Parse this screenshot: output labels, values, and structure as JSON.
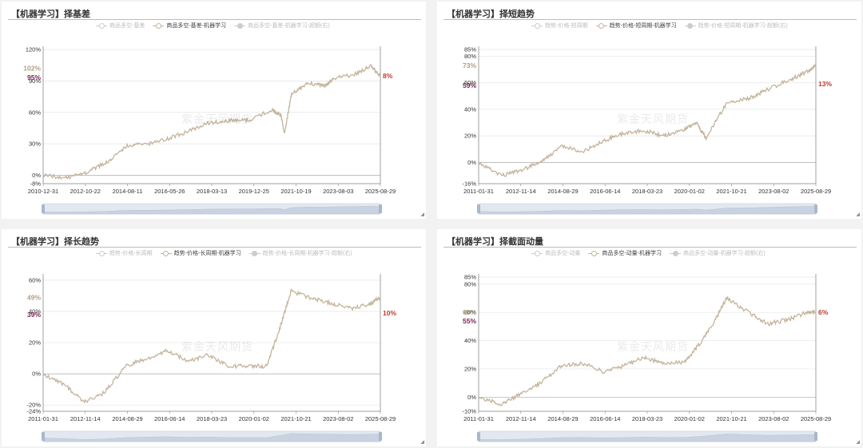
{
  "watermark": "紫金天风期货",
  "colors": {
    "series": "#c4b49c",
    "left_label": "#b09e84",
    "mid_label": "#7a2256",
    "right_label": "#c0392b",
    "grid": "#e4e4e4"
  },
  "panels": [
    {
      "title": "【机器学习】择基差",
      "legend": [
        "商品多空-基差",
        "商品多空-基差-机器学习",
        "商品多空-基差-机器学习-超额(右)"
      ],
      "chart_data": {
        "type": "line",
        "title": "【机器学习】择基差",
        "x_tick_labels": [
          "2010-12-31",
          "2012-10-22",
          "2014-08-11",
          "2016-05-26",
          "2018-03-13",
          "2019-12-25",
          "2021-10-19",
          "2023-08-03",
          "2025-08-29"
        ],
        "y_tick_labels": [
          "-8%",
          "0%",
          "30%",
          "60%",
          "90%",
          "120%"
        ],
        "ylim": [
          -8,
          120
        ],
        "x": [
          "2010-12-31",
          "2011-12-31",
          "2012-10-22",
          "2013-09-30",
          "2014-08-11",
          "2015-06-30",
          "2016-05-26",
          "2017-04-30",
          "2018-03-13",
          "2019-01-31",
          "2019-12-25",
          "2020-11-30",
          "2021-04-30",
          "2021-06-30",
          "2021-10-19",
          "2022-06-30",
          "2023-03-31",
          "2023-08-03",
          "2024-06-30",
          "2025-03-31",
          "2025-08-29"
        ],
        "series": [
          {
            "values": [
              0,
              -2,
              2,
              12,
              28,
              30,
              35,
              42,
              50,
              52,
              53,
              62,
              58,
              40,
              78,
              88,
              85,
              92,
              96,
              104,
              95
            ]
          }
        ],
        "value_labels": {
          "left_top": "102%",
          "left_mid": "95%",
          "right": "8%"
        },
        "value_label_levels": {
          "left_top": 102,
          "left_mid": 95,
          "right": 95
        }
      }
    },
    {
      "title": "【机器学习】择短趋势",
      "legend": [
        "趋势-价格-短周期",
        "趋势-价格-短周期-机器学习",
        "趋势-价格-短周期-机器学习-超额(右)"
      ],
      "chart_data": {
        "type": "line",
        "title": "【机器学习】择短趋势",
        "x_tick_labels": [
          "2011-01-31",
          "2012-11-14",
          "2014-08-29",
          "2016-06-14",
          "2018-03-23",
          "2020-01-02",
          "2021-10-21",
          "2023-08-02",
          "2025-08-29"
        ],
        "y_tick_labels": [
          "-16%",
          "0%",
          "20%",
          "40%",
          "60%",
          "80%",
          "85%"
        ],
        "ylim": [
          -16,
          85
        ],
        "x": [
          "2011-01-31",
          "2012-01-31",
          "2012-11-14",
          "2013-09-30",
          "2014-08-29",
          "2015-07-31",
          "2016-06-14",
          "2017-04-30",
          "2018-03-23",
          "2019-01-31",
          "2020-01-02",
          "2020-06-30",
          "2020-11-30",
          "2021-10-21",
          "2022-09-30",
          "2023-08-02",
          "2024-06-30",
          "2025-03-31",
          "2025-08-29"
        ],
        "series": [
          {
            "values": [
              0,
              -10,
              -6,
              0,
              12,
              8,
              16,
              22,
              24,
              20,
              25,
              30,
              18,
              45,
              48,
              55,
              62,
              68,
              73
            ]
          }
        ],
        "value_labels": {
          "left_top": "73%",
          "left_mid": "59%",
          "right": "13%"
        },
        "value_label_levels": {
          "left_top": 73,
          "left_mid": 59,
          "right": 59
        }
      }
    },
    {
      "title": "【机器学习】择长趋势",
      "legend": [
        "趋势-价格-长周期",
        "趋势-价格-长周期-机器学习",
        "趋势-价格-长周期-机器学习-超额(右)"
      ],
      "chart_data": {
        "type": "line",
        "title": "【机器学习】择长趋势",
        "x_tick_labels": [
          "2011-01-31",
          "2012-11-14",
          "2014-08-29",
          "2016-06-14",
          "2018-03-23",
          "2020-01-02",
          "2021-10-21",
          "2023-08-02",
          "2025-08-29"
        ],
        "y_tick_labels": [
          "-24%",
          "-20%",
          "0%",
          "20%",
          "40%",
          "60%"
        ],
        "ylim": [
          -24,
          62
        ],
        "x": [
          "2011-01-31",
          "2012-01-31",
          "2012-11-14",
          "2013-09-30",
          "2014-08-29",
          "2015-07-31",
          "2016-06-14",
          "2017-04-30",
          "2018-03-23",
          "2019-01-31",
          "2020-01-02",
          "2020-09-30",
          "2021-04-30",
          "2021-10-21",
          "2022-09-30",
          "2023-08-02",
          "2024-06-30",
          "2025-03-31",
          "2025-08-29"
        ],
        "series": [
          {
            "values": [
              0,
              -8,
              -18,
              -12,
              5,
              10,
              15,
              8,
              12,
              5,
              5,
              5,
              30,
              53,
              48,
              45,
              42,
              45,
              49
            ]
          }
        ],
        "value_labels": {
          "left_top": "49%",
          "left_mid": "39%",
          "right": "10%"
        },
        "value_label_levels": {
          "left_top": 49,
          "left_mid": 39,
          "right": 39
        }
      }
    },
    {
      "title": "【机器学习】择截面动量",
      "legend": [
        "商品多空-动量",
        "商品多空-动量-机器学习",
        "商品多空-动量-机器学习-超额(右)"
      ],
      "chart_data": {
        "type": "line",
        "title": "【机器学习】择截面动量",
        "x_tick_labels": [
          "2011-01-31",
          "2012-11-14",
          "2014-08-29",
          "2016-06-14",
          "2018-03-23",
          "2020-01-02",
          "2021-10-21",
          "2023-08-02",
          "2025-08-29"
        ],
        "y_tick_labels": [
          "-10%",
          "0%",
          "20%",
          "40%",
          "60%",
          "80%",
          "85%"
        ],
        "ylim": [
          -10,
          85
        ],
        "x": [
          "2011-01-31",
          "2012-01-31",
          "2012-11-14",
          "2013-09-30",
          "2014-08-29",
          "2015-07-31",
          "2016-06-14",
          "2017-04-30",
          "2018-03-23",
          "2019-01-31",
          "2020-01-02",
          "2020-09-30",
          "2021-04-30",
          "2021-10-21",
          "2022-09-30",
          "2023-08-02",
          "2024-06-30",
          "2025-03-31",
          "2025-08-29"
        ],
        "series": [
          {
            "values": [
              0,
              -5,
              2,
              10,
              22,
              24,
              18,
              22,
              28,
              24,
              25,
              40,
              55,
              70,
              60,
              52,
              55,
              60,
              60
            ]
          }
        ],
        "value_labels": {
          "left_top": "60%",
          "left_mid": "55%",
          "right": "6%"
        },
        "value_label_levels": {
          "left_top": 60,
          "left_mid": 55,
          "right": 60
        }
      }
    }
  ]
}
